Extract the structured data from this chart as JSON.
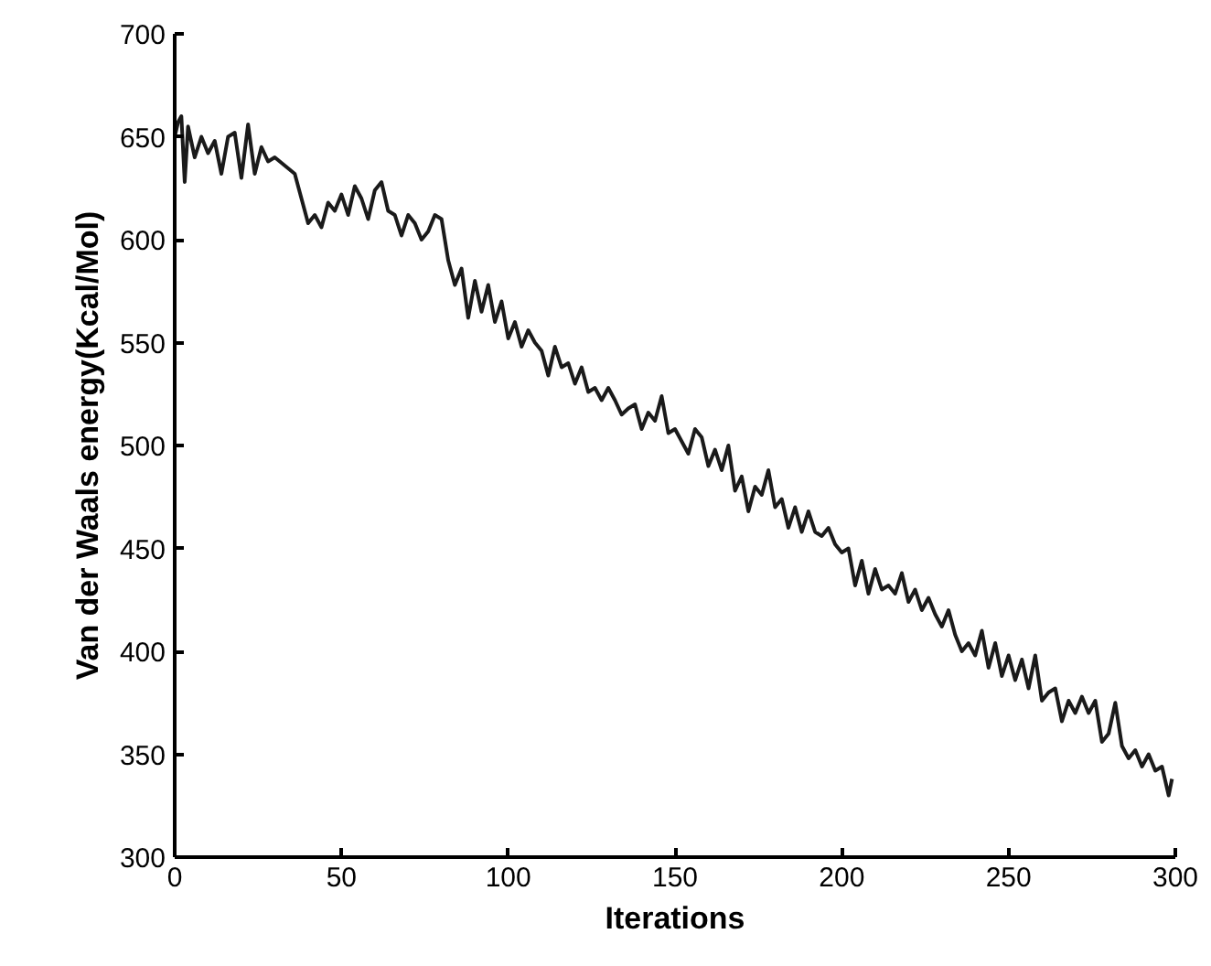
{
  "chart_data": {
    "type": "line",
    "xlabel": "Iterations",
    "ylabel": "Van der Waals energy(Kcal/Mol)",
    "xlim": [
      0,
      300
    ],
    "ylim": [
      300,
      700
    ],
    "xticks": [
      0,
      50,
      100,
      150,
      200,
      250,
      300
    ],
    "yticks": [
      300,
      350,
      400,
      450,
      500,
      550,
      600,
      650,
      700
    ],
    "grid": false,
    "marker": "none",
    "line_style": "solid",
    "x": [
      0,
      1,
      2,
      3,
      4,
      6,
      8,
      10,
      12,
      14,
      16,
      18,
      20,
      22,
      24,
      26,
      28,
      30,
      33,
      36,
      38,
      40,
      42,
      44,
      46,
      48,
      50,
      52,
      54,
      56,
      58,
      60,
      62,
      64,
      66,
      68,
      70,
      72,
      74,
      76,
      78,
      80,
      82,
      84,
      86,
      88,
      90,
      92,
      94,
      96,
      98,
      100,
      102,
      104,
      106,
      108,
      110,
      112,
      114,
      116,
      118,
      120,
      122,
      124,
      126,
      128,
      130,
      132,
      134,
      136,
      138,
      140,
      142,
      144,
      146,
      148,
      150,
      152,
      154,
      156,
      158,
      160,
      162,
      164,
      166,
      168,
      170,
      172,
      174,
      176,
      178,
      180,
      182,
      184,
      186,
      188,
      190,
      192,
      194,
      196,
      198,
      200,
      202,
      204,
      206,
      208,
      210,
      212,
      214,
      216,
      218,
      220,
      222,
      224,
      226,
      228,
      230,
      232,
      234,
      236,
      238,
      240,
      242,
      244,
      246,
      248,
      250,
      252,
      254,
      256,
      258,
      260,
      262,
      264,
      266,
      268,
      270,
      272,
      274,
      276,
      278,
      280,
      282,
      284,
      286,
      288,
      290,
      292,
      294,
      296,
      298,
      299
    ],
    "series": [
      {
        "color": "#1a1a1a",
        "values": [
          650,
          657,
          660,
          628,
          655,
          640,
          650,
          642,
          648,
          632,
          650,
          652,
          630,
          656,
          632,
          645,
          638,
          640,
          636,
          632,
          620,
          608,
          612,
          606,
          618,
          614,
          622,
          612,
          626,
          620,
          610,
          624,
          628,
          614,
          612,
          602,
          612,
          608,
          600,
          604,
          612,
          610,
          590,
          578,
          586,
          562,
          580,
          565,
          578,
          560,
          570,
          552,
          560,
          548,
          556,
          550,
          546,
          534,
          548,
          538,
          540,
          530,
          538,
          526,
          528,
          522,
          528,
          522,
          515,
          518,
          520,
          508,
          516,
          512,
          524,
          506,
          508,
          502,
          496,
          508,
          504,
          490,
          498,
          488,
          500,
          478,
          485,
          468,
          480,
          476,
          488,
          470,
          474,
          460,
          470,
          458,
          468,
          458,
          456,
          460,
          452,
          448,
          450,
          432,
          444,
          428,
          440,
          430,
          432,
          428,
          438,
          424,
          430,
          420,
          426,
          418,
          412,
          420,
          408,
          400,
          404,
          398,
          410,
          392,
          404,
          388,
          398,
          386,
          396,
          382,
          398,
          376,
          380,
          382,
          366,
          376,
          370,
          378,
          370,
          376,
          356,
          360,
          375,
          354,
          348,
          352,
          344,
          350,
          342,
          344,
          330,
          338
        ]
      }
    ]
  }
}
